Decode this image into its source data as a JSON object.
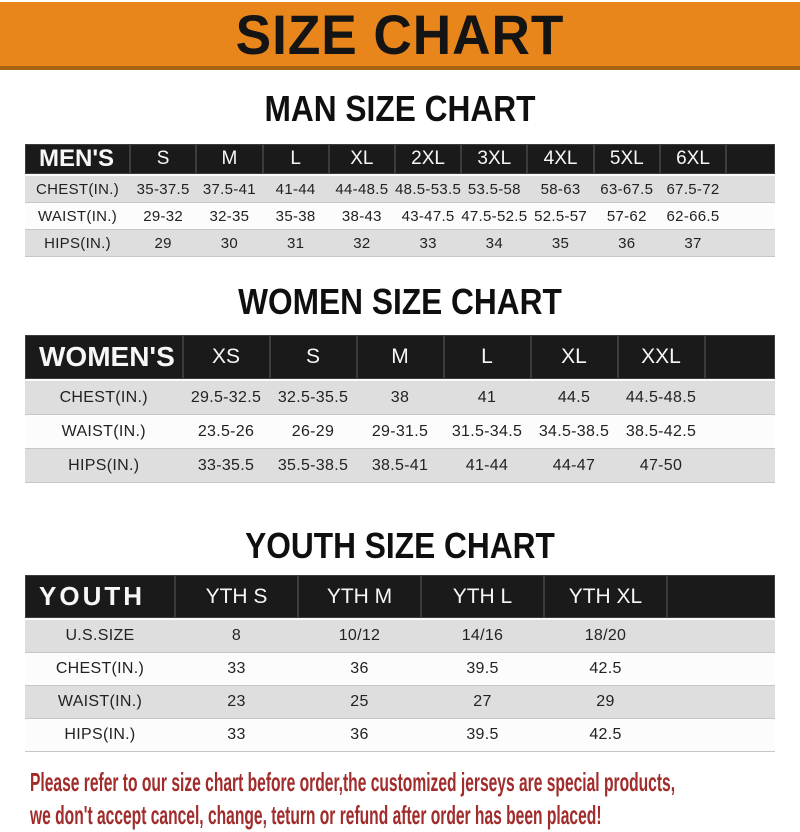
{
  "banner": {
    "title": "SIZE CHART"
  },
  "colors": {
    "banner_bg": "#E8861C",
    "bar_bg": "#1A1A1A",
    "row_alt_bg": "#DEDEDE",
    "footer_text": "#A12C2C"
  },
  "sections": [
    {
      "title": "MAN SIZE CHART",
      "header_label": "MEN'S",
      "columns": [
        "S",
        "M",
        "L",
        "XL",
        "2XL",
        "3XL",
        "4XL",
        "5XL",
        "6XL"
      ],
      "rows": [
        {
          "label": "CHEST(IN.)",
          "values": [
            "35-37.5",
            "37.5-41",
            "41-44",
            "44-48.5",
            "48.5-53.5",
            "53.5-58",
            "58-63",
            "63-67.5",
            "67.5-72"
          ]
        },
        {
          "label": "WAIST(IN.)",
          "values": [
            "29-32",
            "32-35",
            "35-38",
            "38-43",
            "43-47.5",
            "47.5-52.5",
            "52.5-57",
            "57-62",
            "62-66.5"
          ]
        },
        {
          "label": "HIPS(IN.)",
          "values": [
            "29",
            "30",
            "31",
            "32",
            "33",
            "34",
            "35",
            "36",
            "37"
          ]
        }
      ]
    },
    {
      "title": "WOMEN SIZE CHART",
      "header_label": "WOMEN'S",
      "columns": [
        "XS",
        "S",
        "M",
        "L",
        "XL",
        "XXL"
      ],
      "rows": [
        {
          "label": "CHEST(IN.)",
          "values": [
            "29.5-32.5",
            "32.5-35.5",
            "38",
            "41",
            "44.5",
            "44.5-48.5"
          ]
        },
        {
          "label": "WAIST(IN.)",
          "values": [
            "23.5-26",
            "26-29",
            "29-31.5",
            "31.5-34.5",
            "34.5-38.5",
            "38.5-42.5"
          ]
        },
        {
          "label": "HIPS(IN.)",
          "values": [
            "33-35.5",
            "35.5-38.5",
            "38.5-41",
            "41-44",
            "44-47",
            "47-50"
          ]
        }
      ]
    },
    {
      "title": "YOUTH SIZE CHART",
      "header_label": "YOUTH",
      "columns": [
        "YTH S",
        "YTH M",
        "YTH L",
        "YTH XL"
      ],
      "rows": [
        {
          "label": "U.S.SIZE",
          "values": [
            "8",
            "10/12",
            "14/16",
            "18/20"
          ]
        },
        {
          "label": "CHEST(IN.)",
          "values": [
            "33",
            "36",
            "39.5",
            "42.5"
          ]
        },
        {
          "label": "WAIST(IN.)",
          "values": [
            "23",
            "25",
            "27",
            "29"
          ]
        },
        {
          "label": "HIPS(IN.)",
          "values": [
            "33",
            "36",
            "39.5",
            "42.5"
          ]
        }
      ]
    }
  ],
  "footer": {
    "line1": "Please refer to our size chart before order,the customized jerseys are special products,",
    "line2": "we don't accept cancel, change, teturn or refund after order has been placed!"
  }
}
